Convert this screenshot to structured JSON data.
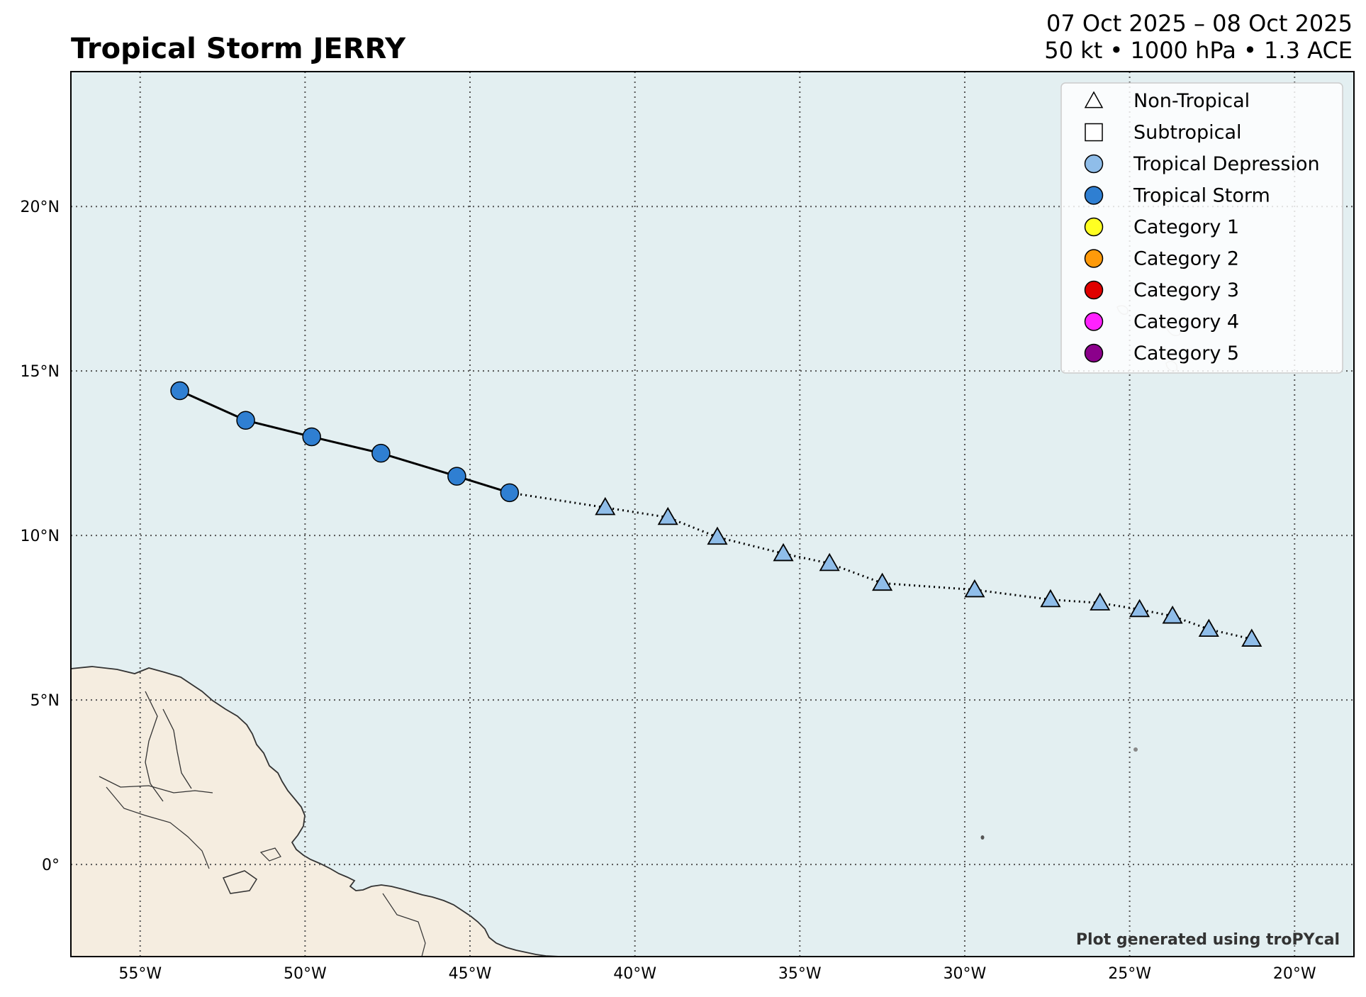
{
  "title": "Tropical Storm JERRY",
  "date_range": "07 Oct 2025 – 08 Oct 2025",
  "stats": "50 kt • 1000 hPa • 1.3 ACE",
  "credit": "Plot generated using troPYcal",
  "colors": {
    "ocean": "#e3eff1",
    "land": "#f5ede0",
    "tropical_depression": "#8fbde9",
    "tropical_storm": "#2f7fd2",
    "category_1": "#ffff22",
    "category_2": "#ff9a0a",
    "category_3": "#e00000",
    "category_4": "#ff22ff",
    "category_5": "#8b008b"
  },
  "legend": [
    {
      "label": "Non-Tropical",
      "marker": "triangle",
      "color": "#ffffff"
    },
    {
      "label": "Subtropical",
      "marker": "square",
      "color": "#ffffff"
    },
    {
      "label": "Tropical Depression",
      "marker": "circle",
      "color": "#8fbde9"
    },
    {
      "label": "Tropical Storm",
      "marker": "circle",
      "color": "#2f7fd2"
    },
    {
      "label": "Category 1",
      "marker": "circle",
      "color": "#ffff22"
    },
    {
      "label": "Category 2",
      "marker": "circle",
      "color": "#ff9a0a"
    },
    {
      "label": "Category 3",
      "marker": "circle",
      "color": "#e00000"
    },
    {
      "label": "Category 4",
      "marker": "circle",
      "color": "#ff22ff"
    },
    {
      "label": "Category 5",
      "marker": "circle",
      "color": "#8b008b"
    }
  ],
  "axes": {
    "lon_range": [
      -57.1,
      -18.2
    ],
    "lat_range": [
      -2.8,
      24.1
    ],
    "lon_ticks": [
      {
        "value": -55,
        "label": "55°W"
      },
      {
        "value": -50,
        "label": "50°W"
      },
      {
        "value": -45,
        "label": "45°W"
      },
      {
        "value": -40,
        "label": "40°W"
      },
      {
        "value": -35,
        "label": "35°W"
      },
      {
        "value": -30,
        "label": "30°W"
      },
      {
        "value": -25,
        "label": "25°W"
      },
      {
        "value": -20,
        "label": "20°W"
      }
    ],
    "lat_ticks": [
      {
        "value": 0,
        "label": "0°"
      },
      {
        "value": 5,
        "label": "5°N"
      },
      {
        "value": 10,
        "label": "10°N"
      },
      {
        "value": 15,
        "label": "15°N"
      },
      {
        "value": 20,
        "label": "20°N"
      }
    ],
    "grid": true
  },
  "track": [
    {
      "lon": -21.3,
      "lat": 6.85,
      "type": "non-tropical",
      "color": "#8fbde9"
    },
    {
      "lon": -22.6,
      "lat": 7.15,
      "type": "non-tropical",
      "color": "#8fbde9"
    },
    {
      "lon": -23.7,
      "lat": 7.55,
      "type": "non-tropical",
      "color": "#8fbde9"
    },
    {
      "lon": -24.7,
      "lat": 7.75,
      "type": "non-tropical",
      "color": "#8fbde9"
    },
    {
      "lon": -25.9,
      "lat": 7.95,
      "type": "non-tropical",
      "color": "#8fbde9"
    },
    {
      "lon": -27.4,
      "lat": 8.05,
      "type": "non-tropical",
      "color": "#8fbde9"
    },
    {
      "lon": -29.7,
      "lat": 8.35,
      "type": "non-tropical",
      "color": "#8fbde9"
    },
    {
      "lon": -32.5,
      "lat": 8.55,
      "type": "non-tropical",
      "color": "#8fbde9"
    },
    {
      "lon": -34.1,
      "lat": 9.15,
      "type": "non-tropical",
      "color": "#8fbde9"
    },
    {
      "lon": -35.5,
      "lat": 9.45,
      "type": "non-tropical",
      "color": "#8fbde9"
    },
    {
      "lon": -37.5,
      "lat": 9.95,
      "type": "non-tropical",
      "color": "#8fbde9"
    },
    {
      "lon": -39.0,
      "lat": 10.55,
      "type": "non-tropical",
      "color": "#8fbde9"
    },
    {
      "lon": -40.9,
      "lat": 10.85,
      "type": "non-tropical",
      "color": "#8fbde9"
    },
    {
      "lon": -43.8,
      "lat": 11.3,
      "type": "tropical",
      "color": "#2f7fd2"
    },
    {
      "lon": -45.4,
      "lat": 11.8,
      "type": "tropical",
      "color": "#2f7fd2"
    },
    {
      "lon": -47.7,
      "lat": 12.5,
      "type": "tropical",
      "color": "#2f7fd2"
    },
    {
      "lon": -49.8,
      "lat": 13.0,
      "type": "tropical",
      "color": "#2f7fd2"
    },
    {
      "lon": -51.8,
      "lat": 13.5,
      "type": "tropical",
      "color": "#2f7fd2"
    },
    {
      "lon": -53.8,
      "lat": 14.4,
      "type": "tropical",
      "color": "#2f7fd2"
    }
  ]
}
